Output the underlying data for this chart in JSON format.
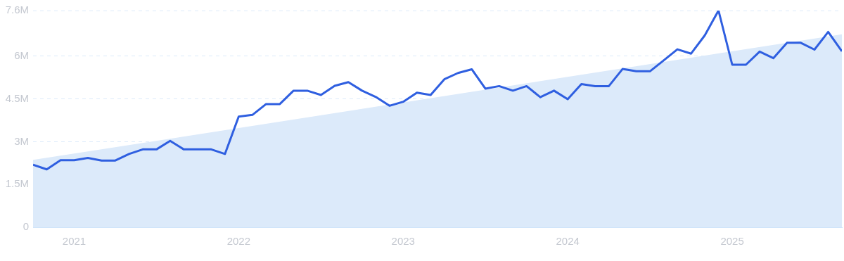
{
  "chart_data": {
    "type": "line",
    "x": [
      "2020-10",
      "2020-11",
      "2020-12",
      "2021-01",
      "2021-02",
      "2021-03",
      "2021-04",
      "2021-05",
      "2021-06",
      "2021-07",
      "2021-08",
      "2021-09",
      "2021-10",
      "2021-11",
      "2021-12",
      "2022-01",
      "2022-02",
      "2022-03",
      "2022-04",
      "2022-05",
      "2022-06",
      "2022-07",
      "2022-08",
      "2022-09",
      "2022-10",
      "2022-11",
      "2022-12",
      "2023-01",
      "2023-02",
      "2023-03",
      "2023-04",
      "2023-05",
      "2023-06",
      "2023-07",
      "2023-08",
      "2023-09",
      "2023-10",
      "2023-11",
      "2023-12",
      "2024-01",
      "2024-02",
      "2024-03",
      "2024-04",
      "2024-05",
      "2024-06",
      "2024-07",
      "2024-08",
      "2024-09",
      "2024-10",
      "2024-11",
      "2024-12",
      "2025-01",
      "2025-02",
      "2025-03",
      "2025-04",
      "2025-05",
      "2025-06",
      "2025-07",
      "2025-08",
      "2025-09"
    ],
    "series": [
      {
        "type": "area",
        "color": "#dceafa",
        "x": [
          "2020-10",
          "2025-09"
        ],
        "values": [
          2.36,
          6.77
        ]
      },
      {
        "color": "#2f5fe0",
        "values": [
          2.19,
          2.03,
          2.35,
          2.35,
          2.43,
          2.34,
          2.34,
          2.57,
          2.73,
          2.73,
          3.03,
          2.73,
          2.73,
          2.73,
          2.57,
          3.88,
          3.94,
          4.32,
          4.32,
          4.79,
          4.79,
          4.64,
          4.96,
          5.09,
          4.79,
          4.57,
          4.26,
          4.4,
          4.72,
          4.64,
          5.19,
          5.41,
          5.54,
          4.86,
          4.95,
          4.79,
          4.95,
          4.56,
          4.79,
          4.49,
          5.02,
          4.95,
          4.95,
          5.55,
          5.47,
          5.47,
          5.85,
          6.24,
          6.09,
          6.73,
          7.6,
          5.7,
          5.7,
          6.16,
          5.93,
          6.47,
          6.47,
          6.23,
          6.85,
          6.17
        ]
      }
    ],
    "xlim": [
      "2020-10",
      "2025-09"
    ],
    "xticks": [
      {
        "value": "2021-01",
        "label": "2021"
      },
      {
        "value": "2022-01",
        "label": "2022"
      },
      {
        "value": "2023-01",
        "label": "2023"
      },
      {
        "value": "2024-01",
        "label": "2024"
      },
      {
        "value": "2025-01",
        "label": "2025"
      }
    ],
    "ylim": [
      0,
      7.6
    ],
    "yticks": [
      0,
      {
        "value": 1.5,
        "label": "1.5M"
      },
      {
        "value": 3,
        "label": "3M"
      },
      {
        "value": 4.5,
        "label": "4.5M"
      },
      {
        "value": 6,
        "label": "6M"
      },
      {
        "value": 7.6,
        "label": "7.6M"
      }
    ],
    "grid": "y",
    "legend": false,
    "marker": "none",
    "line_style": "solid"
  }
}
